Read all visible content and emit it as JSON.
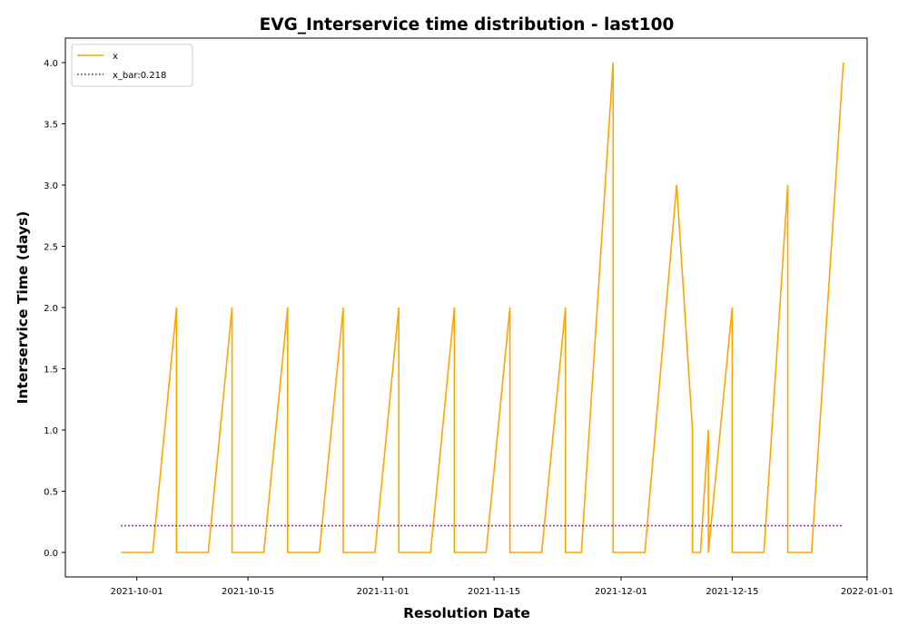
{
  "chart_data": {
    "type": "line",
    "title": "EVG_Interservice time distribution - last100",
    "xlabel": "Resolution Date",
    "ylabel": "Interservice Time (days)",
    "x_axis_type": "date",
    "xlim": [
      "2021-09-22",
      "2022-01-01"
    ],
    "ylim": [
      -0.2,
      4.2
    ],
    "x_ticks": [
      "2021-10-01",
      "2021-10-15",
      "2021-11-01",
      "2021-11-15",
      "2021-12-01",
      "2021-12-15",
      "2022-01-01"
    ],
    "y_ticks": [
      0.0,
      0.5,
      1.0,
      1.5,
      2.0,
      2.5,
      3.0,
      3.5,
      4.0
    ],
    "x_tick_labels": [
      "2021-10-01",
      "2021-10-15",
      "2021-11-01",
      "2021-11-15",
      "2021-12-01",
      "2021-12-15",
      "2022-01-01"
    ],
    "y_tick_labels": [
      "0.0",
      "0.5",
      "1.0",
      "1.5",
      "2.0",
      "2.5",
      "3.0",
      "3.5",
      "4.0"
    ],
    "grid": false,
    "legend": {
      "placement": "top-left",
      "entries": [
        "x",
        "x_bar:0.218"
      ]
    },
    "series": [
      {
        "name": "x",
        "style": "solid",
        "color": "#FFA500",
        "points": [
          [
            "2021-09-29",
            0
          ],
          [
            "2021-10-03",
            0
          ],
          [
            "2021-10-06",
            2
          ],
          [
            "2021-10-06",
            0
          ],
          [
            "2021-10-10",
            0
          ],
          [
            "2021-10-13",
            2
          ],
          [
            "2021-10-13",
            0
          ],
          [
            "2021-10-17",
            0
          ],
          [
            "2021-10-20",
            2
          ],
          [
            "2021-10-20",
            0
          ],
          [
            "2021-10-24",
            0
          ],
          [
            "2021-10-27",
            2
          ],
          [
            "2021-10-27",
            0
          ],
          [
            "2021-10-31",
            0
          ],
          [
            "2021-11-03",
            2
          ],
          [
            "2021-11-03",
            0
          ],
          [
            "2021-11-07",
            0
          ],
          [
            "2021-11-10",
            2
          ],
          [
            "2021-11-10",
            0
          ],
          [
            "2021-11-14",
            0
          ],
          [
            "2021-11-17",
            2
          ],
          [
            "2021-11-17",
            0
          ],
          [
            "2021-11-21",
            0
          ],
          [
            "2021-11-24",
            2
          ],
          [
            "2021-11-24",
            0
          ],
          [
            "2021-11-26",
            0
          ],
          [
            "2021-11-30",
            4
          ],
          [
            "2021-11-30",
            0
          ],
          [
            "2021-12-04",
            0
          ],
          [
            "2021-12-08",
            3
          ],
          [
            "2021-12-10",
            1
          ],
          [
            "2021-12-10",
            0
          ],
          [
            "2021-12-11",
            0
          ],
          [
            "2021-12-12",
            1
          ],
          [
            "2021-12-12",
            0
          ],
          [
            "2021-12-15",
            2
          ],
          [
            "2021-12-15",
            0
          ],
          [
            "2021-12-19",
            0
          ],
          [
            "2021-12-22",
            3
          ],
          [
            "2021-12-22",
            0
          ],
          [
            "2021-12-25",
            0
          ],
          [
            "2021-12-29",
            4
          ]
        ]
      },
      {
        "name": "x_bar:0.218",
        "style": "dotted",
        "color": "#800080",
        "points": [
          [
            "2021-09-29",
            0.218
          ],
          [
            "2021-12-29",
            0.218
          ]
        ]
      }
    ]
  }
}
